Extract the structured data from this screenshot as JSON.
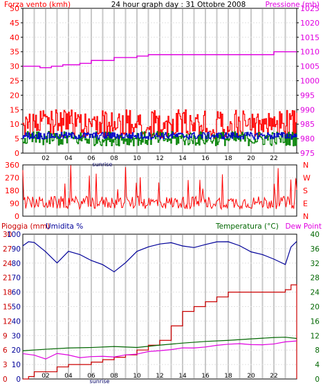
{
  "colors": {
    "wind": "#ff0000",
    "wind_avg": "#0000cc",
    "wind_green": "#008000",
    "pressure": "#e000e0",
    "direction": "#ff0000",
    "rain": "#cc0000",
    "humidity": "#000099",
    "temperature": "#006600",
    "dewpoint": "#e000e0",
    "grid": "#c8c8c8",
    "sunrise_label": "#000066"
  },
  "chart_data": [
    {
      "type": "line",
      "title": "24 hour graph day : 31 Ottobre 2008",
      "left_axis_label": "Forza vento (kmh)",
      "right_axis_label": "Pressione (mb)",
      "x_ticks": [
        "02",
        "04",
        "06",
        "08",
        "10",
        "12",
        "14",
        "16",
        "18",
        "20",
        "22"
      ],
      "sunrise_label": "sunrise",
      "y_left_ticks": [
        "0",
        "5",
        "10",
        "15",
        "20",
        "25",
        "30",
        "35",
        "40",
        "45",
        "50"
      ],
      "y_right_ticks": [
        "975",
        "980",
        "985",
        "990",
        "995",
        "1000",
        "1005",
        "1010",
        "1015",
        "1020",
        "1025"
      ],
      "ylim_left": [
        0,
        50
      ],
      "ylim_right": [
        975,
        1025
      ],
      "series": [
        {
          "key": "pressure",
          "axis": "right",
          "x": [
            0,
            1,
            1.5,
            2.5,
            3.5,
            5,
            6,
            7,
            8,
            9,
            10,
            11,
            12,
            13,
            14,
            15,
            16,
            17,
            18,
            19,
            20,
            21,
            22,
            23,
            24
          ],
          "values": [
            1005,
            1005,
            1004.5,
            1005,
            1005.5,
            1006,
            1007,
            1007,
            1008,
            1008,
            1008.5,
            1009,
            1009,
            1009,
            1009,
            1009,
            1009,
            1009,
            1009,
            1009,
            1009,
            1009,
            1010,
            1010,
            1010
          ]
        }
      ]
    },
    {
      "type": "line",
      "left_ticks": [
        "0",
        "90",
        "180",
        "270",
        "360"
      ],
      "right_ticks": [
        "N",
        "E",
        "S",
        "W",
        "N"
      ],
      "ylim": [
        0,
        360
      ]
    },
    {
      "type": "line",
      "left_axis_label": "Pioggia (mm)",
      "left_axis_label2": "Umidita %",
      "right_axis_label": "Temperatura (°C)",
      "right_axis_label2": "Dew Point",
      "x_ticks": [
        "02",
        "04",
        "06",
        "08",
        "10",
        "12",
        "14",
        "16",
        "18",
        "20",
        "22"
      ],
      "sunrise_label": "sunrise",
      "rain_ticks": [
        "0",
        "3",
        "6",
        "9",
        "12",
        "15",
        "18",
        "21",
        "24",
        "27",
        "30"
      ],
      "humidity_ticks": [
        "0",
        "10",
        "20",
        "30",
        "40",
        "50",
        "60",
        "70",
        "80",
        "90",
        "100"
      ],
      "temp_ticks": [
        "0",
        "4",
        "8",
        "12",
        "16",
        "20",
        "24",
        "28",
        "32",
        "36",
        "40"
      ],
      "ylim_rain": [
        0,
        30
      ],
      "ylim_humidity": [
        0,
        100
      ],
      "ylim_temp": [
        0,
        40
      ],
      "series": [
        {
          "key": "humidity",
          "axis": "humidity",
          "x": [
            0,
            0.5,
            1,
            2,
            3,
            4,
            5,
            6,
            7,
            8,
            9,
            10,
            11,
            12,
            13,
            14,
            15,
            16,
            17,
            18,
            19,
            20,
            21,
            22,
            23,
            23.5,
            24
          ],
          "values": [
            92,
            95,
            94,
            88,
            80,
            88,
            86,
            82,
            79,
            74,
            80,
            88,
            91,
            93,
            94,
            92,
            91,
            93,
            95,
            95,
            92,
            88,
            86,
            83,
            79,
            91,
            95
          ]
        },
        {
          "key": "rain",
          "axis": "rain",
          "x": [
            0,
            0.5,
            1,
            2,
            3,
            4,
            5,
            6,
            7,
            8,
            9,
            10,
            11,
            12,
            13,
            14,
            15,
            16,
            17,
            18,
            19,
            20,
            21,
            22,
            23,
            23.5,
            24
          ],
          "values": [
            0,
            0.5,
            1.5,
            1.5,
            2.5,
            3,
            3,
            3.5,
            4,
            4.5,
            5,
            6,
            7,
            8,
            11,
            14,
            15,
            16,
            17,
            18,
            18,
            18,
            18,
            18,
            18.5,
            19.5,
            0
          ]
        },
        {
          "key": "temperature",
          "axis": "temp",
          "x": [
            0,
            2,
            4,
            6,
            8,
            10,
            12,
            14,
            16,
            18,
            20,
            22,
            23,
            24
          ],
          "values": [
            7.8,
            8,
            8.3,
            8.6,
            8.8,
            9,
            9.4,
            9.8,
            10.2,
            10.6,
            11,
            11.4,
            11.8,
            11.2
          ]
        },
        {
          "key": "dewpoint",
          "axis": "temp",
          "x": [
            0,
            1,
            2,
            3,
            4,
            5,
            6,
            7,
            8,
            9,
            10,
            11,
            12,
            13,
            14,
            15,
            16,
            17,
            18,
            19,
            20,
            21,
            22,
            23,
            24
          ],
          "values": [
            7,
            6.5,
            5.5,
            7,
            6.5,
            6,
            6,
            6.2,
            6,
            6.5,
            7,
            7.5,
            8,
            8.2,
            8.5,
            8.8,
            9,
            9.3,
            9.5,
            9.6,
            9.4,
            9.2,
            9.5,
            10,
            10.5
          ]
        }
      ]
    }
  ]
}
